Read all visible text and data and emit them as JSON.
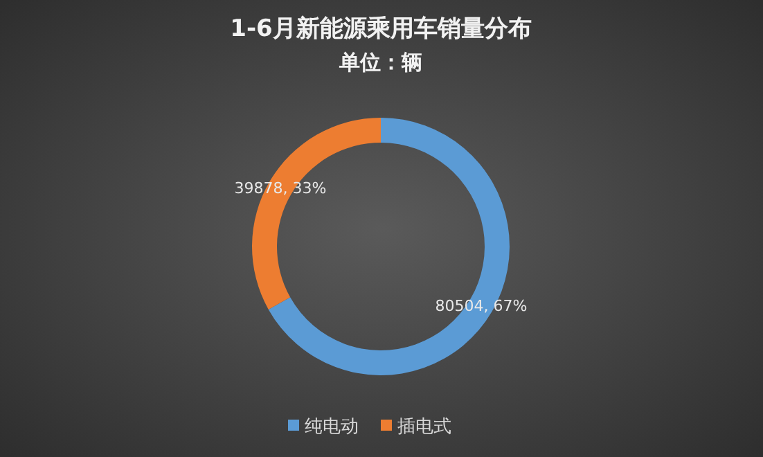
{
  "chart_data": {
    "type": "donut",
    "title": "1-6月新能源乘用车销量分布",
    "subtitle": "单位：辆",
    "categories": [
      "纯电动",
      "插电式"
    ],
    "values": [
      80504,
      39878
    ],
    "colors": [
      "#5b9bd5",
      "#ed7d31"
    ],
    "value_labels": [
      "80504, 67%",
      "39878, 33%"
    ],
    "legend": "bottom"
  }
}
